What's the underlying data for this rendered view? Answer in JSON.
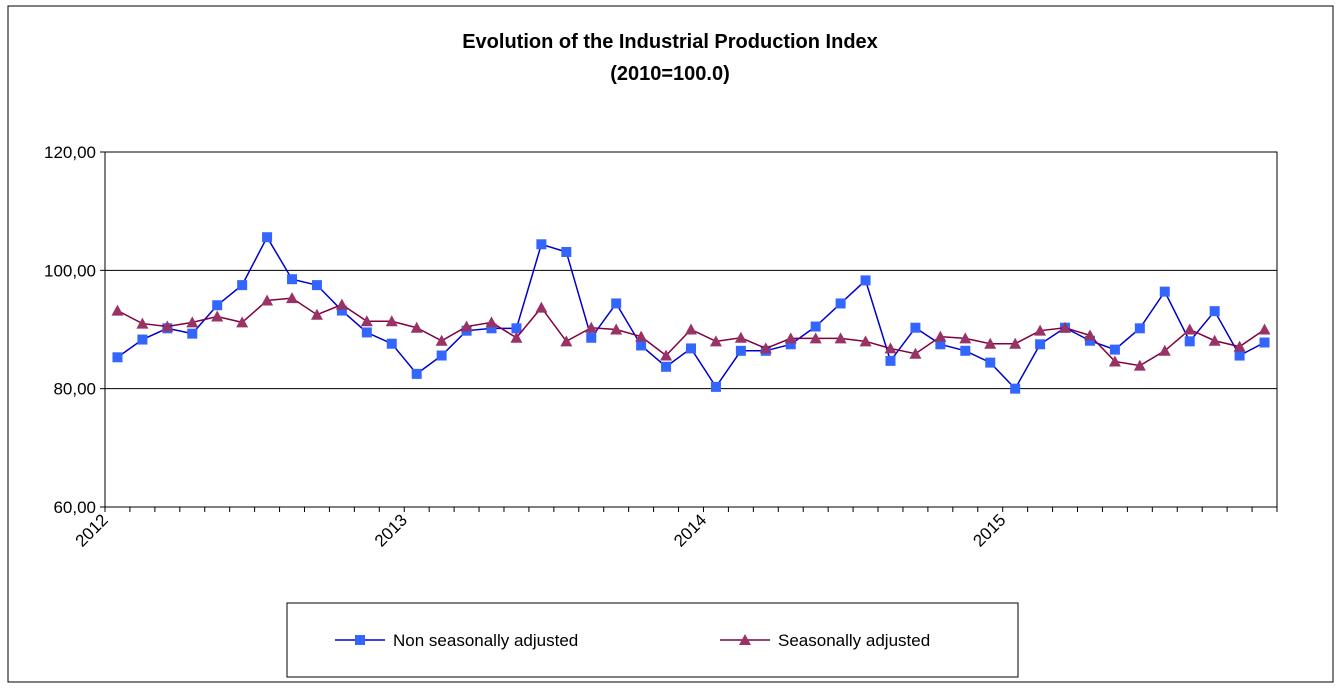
{
  "chart_data": {
    "type": "line",
    "title": "Evolution of the Industrial Production Index",
    "subtitle": "(2010=100.0)",
    "categories": [
      "2012",
      null,
      null,
      null,
      null,
      null,
      null,
      null,
      null,
      null,
      null,
      null,
      "2013",
      null,
      null,
      null,
      null,
      null,
      null,
      null,
      null,
      null,
      null,
      null,
      "2014",
      null,
      null,
      null,
      null,
      null,
      null,
      null,
      null,
      null,
      null,
      null,
      "2015",
      null,
      null,
      null,
      null,
      null,
      null,
      null,
      null,
      null,
      null
    ],
    "series": [
      {
        "name": "Non seasonally adjusted",
        "color": "#3366ff",
        "marker": "square",
        "values": [
          85.3,
          88.3,
          90.2,
          89.3,
          94.1,
          97.5,
          105.6,
          98.5,
          97.5,
          93.2,
          89.5,
          87.6,
          82.5,
          85.6,
          89.8,
          90.2,
          90.2,
          104.4,
          103.1,
          88.6,
          94.4,
          87.3,
          83.7,
          86.8,
          80.3,
          86.4,
          86.4,
          87.5,
          90.5,
          94.4,
          98.3,
          84.7,
          90.3,
          87.5,
          86.4,
          84.4,
          80.0,
          87.5,
          90.3,
          88.1,
          86.6,
          90.2,
          96.4,
          88.0,
          93.1,
          85.6,
          87.8
        ]
      },
      {
        "name": "Seasonally adjusted",
        "color": "#993366",
        "marker": "triangle",
        "values": [
          93.2,
          91.0,
          90.5,
          91.2,
          92.2,
          91.2,
          94.9,
          95.3,
          92.5,
          94.2,
          91.4,
          91.4,
          90.3,
          88.1,
          90.5,
          91.2,
          88.6,
          93.7,
          88.0,
          90.3,
          90.0,
          88.8,
          85.6,
          90.0,
          88.0,
          88.6,
          86.8,
          88.5,
          88.5,
          88.5,
          88.0,
          86.8,
          85.9,
          88.8,
          88.5,
          87.6,
          87.6,
          89.8,
          90.3,
          89.0,
          84.6,
          83.9,
          86.4,
          90.0,
          88.1,
          87.1,
          90.0
        ]
      }
    ],
    "ylim": [
      60,
      120
    ],
    "yticks": [
      {
        "value": 60,
        "label": "60,00"
      },
      {
        "value": 80,
        "label": "80,00"
      },
      {
        "value": 100,
        "label": "100,00"
      },
      {
        "value": 120,
        "label": "120,00"
      }
    ],
    "grid": true,
    "legend": "bottom"
  }
}
